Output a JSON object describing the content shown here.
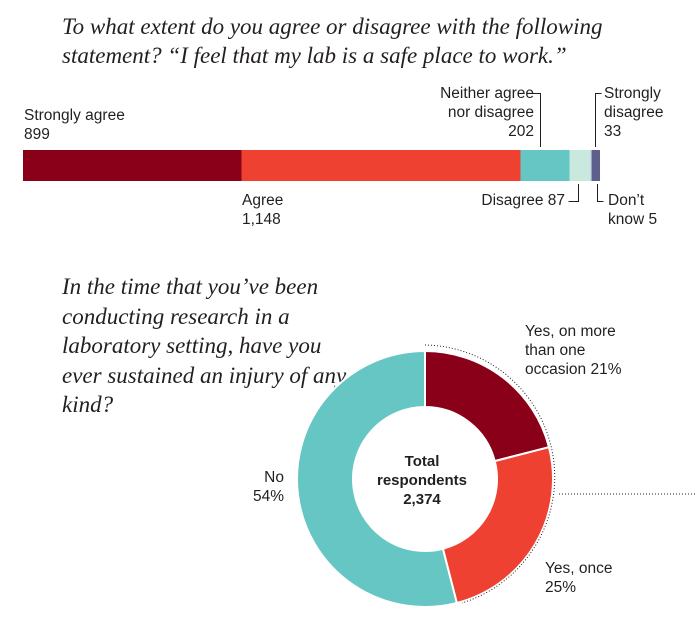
{
  "colors": {
    "strongly_agree": "#8b0019",
    "agree": "#ef4132",
    "neither": "#65c6c3",
    "disagree": "#c9e9df",
    "strongly_disagree": "#5e5e8d",
    "dont_know": "#9da0c2",
    "yes_more": "#8b0019",
    "yes_once": "#ef4132",
    "no": "#65c6c3"
  },
  "q1": {
    "question": "To what extent do you agree or disagree with the following statement? “I feel that my lab is a safe place to work.”",
    "strongly_agree": {
      "label": "Strongly agree",
      "value": "899"
    },
    "agree": {
      "label": "Agree",
      "value": "1,148"
    },
    "neither": {
      "label1": "Neither agree",
      "label2": "nor disagree",
      "value": "202"
    },
    "disagree": {
      "label": "Disagree 87"
    },
    "strongly_disagree": {
      "label1": "Strongly",
      "label2": "disagree",
      "value": "33"
    },
    "dont_know": {
      "label1": "Don’t",
      "label2": "know 5"
    }
  },
  "q2": {
    "question": "In the time that you’ve been conducting research in a laboratory setting, have you ever sustained an injury of any kind?",
    "yes_more": {
      "line1": "Yes, on more",
      "line2": "than one",
      "line3": "occasion 21%"
    },
    "yes_once": {
      "line1": "Yes, once",
      "line2": "25%"
    },
    "no": {
      "line1": "No",
      "line2": "54%"
    },
    "center": {
      "line1": "Total",
      "line2": "respondents",
      "line3": "2,374"
    }
  },
  "chart_data": [
    {
      "type": "bar",
      "title": "To what extent do you agree or disagree with the following statement? “I feel that my lab is a safe place to work.”",
      "orientation": "horizontal-stacked",
      "categories": [
        "Strongly agree",
        "Agree",
        "Neither agree nor disagree",
        "Disagree",
        "Don’t know",
        "Strongly disagree"
      ],
      "values": [
        899,
        1148,
        202,
        87,
        5,
        33
      ]
    },
    {
      "type": "pie",
      "style": "donut",
      "title": "In the time that you’ve been conducting research in a laboratory setting, have you ever sustained an injury of any kind?",
      "categories": [
        "Yes, on more than one occasion",
        "Yes, once",
        "No"
      ],
      "values": [
        21,
        25,
        54
      ],
      "unit": "%",
      "total": "2,374"
    }
  ]
}
